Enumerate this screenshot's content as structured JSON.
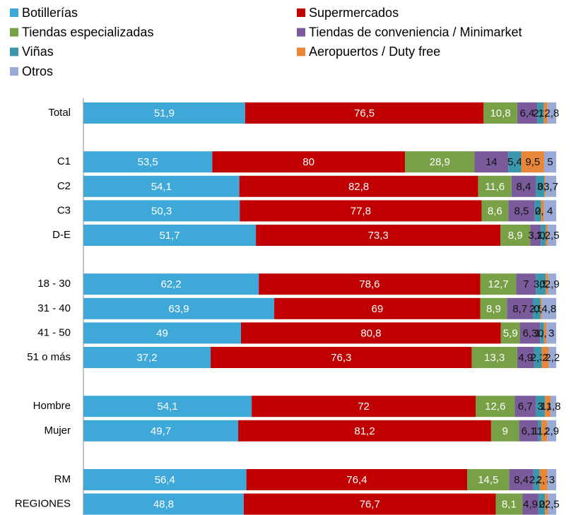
{
  "chart_data": {
    "type": "stacked_bar_percent",
    "categories": [
      "Total",
      null,
      "C1",
      "C2",
      "C3",
      "D-E",
      null,
      "18 - 30",
      "31 - 40",
      "41 - 50",
      "51 o más",
      null,
      "Hombre",
      "Mujer",
      null,
      "RM",
      "REGIONES"
    ],
    "series": [
      {
        "name": "Botillerías",
        "color": "#3ea8d8",
        "values": [
          51.9,
          null,
          53.5,
          54.1,
          50.3,
          51.7,
          null,
          62.2,
          63.9,
          49,
          37.2,
          null,
          54.1,
          49.7,
          null,
          56.4,
          48.8
        ],
        "value_labels": [
          "51,9",
          null,
          "53,5",
          "54,1",
          "50,3",
          "51,7",
          null,
          "62,2",
          "63,9",
          "49",
          "37,2",
          null,
          "54,1",
          "49,7",
          null,
          "56,4",
          "48,8"
        ]
      },
      {
        "name": "Supermercados",
        "color": "#c00000",
        "values": [
          76.5,
          null,
          80,
          82.8,
          77.8,
          73.3,
          null,
          78.6,
          69,
          80.8,
          76.3,
          null,
          72,
          81.2,
          null,
          76.4,
          76.7
        ],
        "value_labels": [
          "76,5",
          null,
          "80",
          "82,8",
          "77,8",
          "73,3",
          null,
          "78,6",
          "69",
          "80,8",
          "76,3",
          null,
          "72",
          "81,2",
          null,
          "76,4",
          "76,7"
        ]
      },
      {
        "name": "Tiendas especializadas",
        "color": "#78a046",
        "values": [
          10.8,
          null,
          28.9,
          11.6,
          8.6,
          8.9,
          null,
          12.7,
          8.9,
          5.9,
          13.3,
          null,
          12.6,
          9,
          null,
          14.5,
          8.1
        ],
        "value_labels": [
          "10,8",
          null,
          "28,9",
          "11,6",
          "8,6",
          "8,9",
          null,
          "12,7",
          "8,9",
          "5,9",
          "13,3",
          null,
          "12,6",
          "9",
          null,
          "14,5",
          "8,1"
        ]
      },
      {
        "name": "Tiendas de conveniencia / Minimarket",
        "color": "#7a5a9a",
        "values": [
          6.4,
          null,
          14,
          8.4,
          8.5,
          3.2,
          null,
          7,
          8.7,
          6.3,
          4.9,
          null,
          6.7,
          6.1,
          null,
          8.4,
          4.9
        ],
        "value_labels": [
          "6,4",
          null,
          "14",
          "8,4",
          "8,5",
          "3,2",
          null,
          "7",
          "8,7",
          "6,3",
          "4,9",
          null,
          "6,7",
          "6,1",
          null,
          "8,4",
          "4,9"
        ]
      },
      {
        "name": "Viñas",
        "color": "#3a96aa",
        "values": [
          2.1,
          null,
          5.4,
          3,
          2,
          1.5,
          null,
          3.5,
          2.5,
          1.2,
          2.3,
          null,
          3,
          1.1,
          null,
          2.2,
          2
        ],
        "value_labels": [
          "2,1",
          null,
          "5,4",
          "3",
          "2",
          "1,5",
          null,
          "3,5",
          "2,5",
          "1,2",
          "2,3",
          null,
          "3",
          "1,1",
          null,
          "2,2",
          "2"
        ]
      },
      {
        "name": "Aeropuertos / Duty free",
        "color": "#e8873a",
        "values": [
          1.2,
          null,
          9.5,
          0.4,
          0.9,
          0.6,
          null,
          0.8,
          0.5,
          0.8,
          2,
          null,
          1.8,
          1.8,
          null,
          2.7,
          0.9
        ],
        "value_labels": [
          "1,2",
          null,
          "9,5",
          "0,4",
          "0,9",
          "0,6",
          null,
          "0,8",
          "0,5",
          "0,8",
          "2",
          null,
          "1,8",
          "1,8",
          null,
          "2,7",
          "0,9"
        ]
      },
      {
        "name": "Otros",
        "color": "#98aad5",
        "values": [
          2.8,
          null,
          5,
          3.7,
          4,
          2.5,
          null,
          2.9,
          4.8,
          3,
          2.2,
          null,
          1.8,
          2.9,
          null,
          3,
          2.5
        ],
        "value_labels": [
          "2,8",
          null,
          "5",
          "3,7",
          "4",
          "2,5",
          null,
          "2,9",
          "4,8",
          "3",
          "2,2",
          null,
          "1,8",
          "2,9",
          null,
          "3",
          "2,5"
        ]
      }
    ]
  }
}
